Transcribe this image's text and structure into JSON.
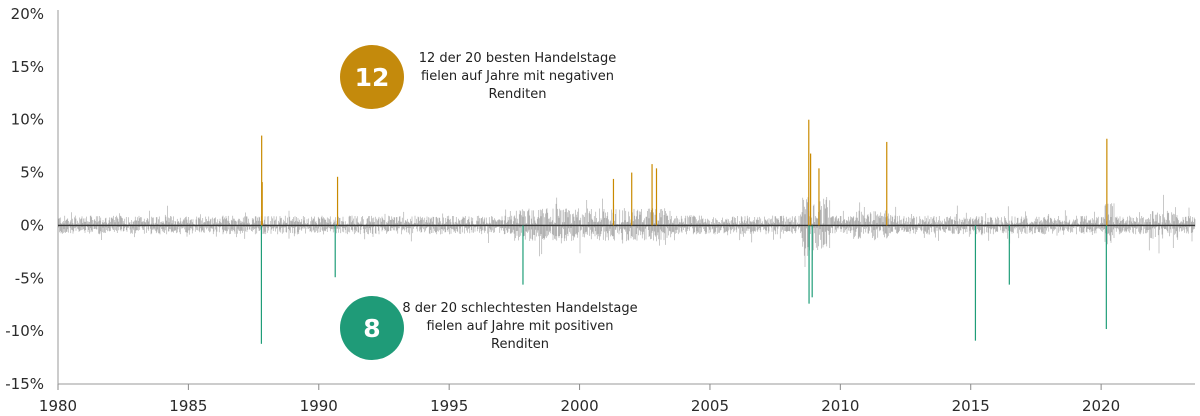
{
  "chart_data": {
    "type": "bar",
    "title": "",
    "xlabel": "",
    "ylabel": "",
    "xlim": [
      1980,
      2023.6
    ],
    "ylim": [
      -15,
      20
    ],
    "y_ticks": [
      20,
      15,
      10,
      5,
      0,
      -5,
      -10,
      -15
    ],
    "y_tick_labels": [
      "20%",
      "15%",
      "10%",
      "5%",
      "0%",
      "-5%",
      "-10%",
      "-15%"
    ],
    "x_ticks": [
      1980,
      1985,
      1990,
      1995,
      2000,
      2005,
      2010,
      2015,
      2020
    ],
    "x_tick_labels": [
      "1980",
      "1985",
      "1990",
      "1995",
      "2000",
      "2005",
      "2010",
      "2015",
      "2020"
    ],
    "colors": {
      "best_days": "#c98a00",
      "worst_days": "#1f9d78",
      "other_days": "#9a9a9a",
      "axis": "#333333"
    },
    "series": [
      {
        "key": "best",
        "values": [
          {
            "x": 1987.81,
            "y": 8.5
          },
          {
            "x": 1987.83,
            "y": 4.1
          },
          {
            "x": 1990.72,
            "y": 4.6
          },
          {
            "x": 2001.3,
            "y": 4.4
          },
          {
            "x": 2002.0,
            "y": 5.0
          },
          {
            "x": 2002.78,
            "y": 5.8
          },
          {
            "x": 2002.95,
            "y": 5.4
          },
          {
            "x": 2008.79,
            "y": 10.0
          },
          {
            "x": 2008.86,
            "y": 6.8
          },
          {
            "x": 2009.18,
            "y": 5.4
          },
          {
            "x": 2011.78,
            "y": 7.9
          },
          {
            "x": 2020.22,
            "y": 8.2
          }
        ]
      },
      {
        "key": "worst",
        "values": [
          {
            "x": 1987.8,
            "y": -11.2
          },
          {
            "x": 1990.63,
            "y": -4.9
          },
          {
            "x": 1997.83,
            "y": -5.6
          },
          {
            "x": 2008.8,
            "y": -7.4
          },
          {
            "x": 2008.92,
            "y": -6.8
          },
          {
            "x": 2015.18,
            "y": -10.9
          },
          {
            "x": 2016.48,
            "y": -5.6
          },
          {
            "x": 2020.2,
            "y": -9.8
          }
        ]
      }
    ]
  },
  "callouts": {
    "best": {
      "number": "12",
      "lines": [
        "12 der 20 besten Handelstage",
        "fielen auf Jahre mit negativen",
        "Renditen"
      ]
    },
    "worst": {
      "number": "8",
      "lines": [
        "8 der 20 schlechtesten Handelstage",
        "fielen auf Jahre mit positiven",
        "Renditen"
      ]
    }
  }
}
